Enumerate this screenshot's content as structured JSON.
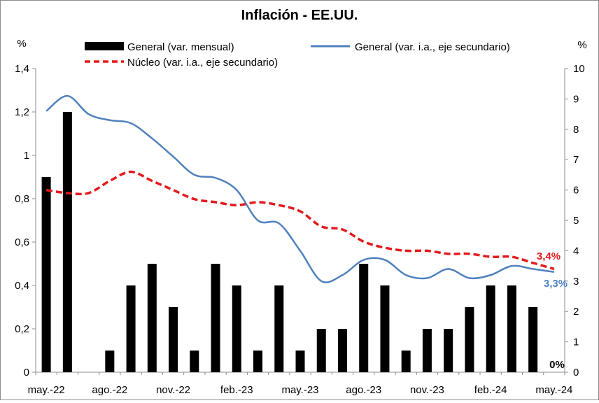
{
  "chart_data": {
    "type": "bar",
    "title": "Inflación - EE.UU.",
    "left_unit": "%",
    "right_unit": "%",
    "ylim_left": [
      0,
      1.4
    ],
    "ylim_right": [
      0,
      10
    ],
    "left_ticks": [
      "0",
      "0,2",
      "0,4",
      "0,6",
      "0,8",
      "1",
      "1,2",
      "1,4"
    ],
    "right_ticks": [
      "0",
      "1",
      "2",
      "3",
      "4",
      "5",
      "6",
      "7",
      "8",
      "9",
      "10"
    ],
    "x_tick_labels": [
      "may.-22",
      "ago.-22",
      "nov.-22",
      "feb.-23",
      "may.-23",
      "ago.-23",
      "nov.-23",
      "feb.-24",
      "may.-24"
    ],
    "months": [
      "may-22",
      "jun-22",
      "jul-22",
      "ago-22",
      "sep-22",
      "oct-22",
      "nov-22",
      "dic-22",
      "ene-23",
      "feb-23",
      "mar-23",
      "abr-23",
      "may-23",
      "jun-23",
      "jul-23",
      "ago-23",
      "sep-23",
      "oct-23",
      "nov-23",
      "dic-23",
      "ene-24",
      "feb-24",
      "mar-24",
      "abr-24",
      "may-24"
    ],
    "series": [
      {
        "name": "General (var. mensual)",
        "type": "bar",
        "axis": "left",
        "color": "#000000",
        "values": [
          0.9,
          1.2,
          0.0,
          0.1,
          0.4,
          0.5,
          0.3,
          0.1,
          0.5,
          0.4,
          0.1,
          0.4,
          0.1,
          0.2,
          0.2,
          0.5,
          0.4,
          0.1,
          0.2,
          0.2,
          0.3,
          0.4,
          0.4,
          0.3,
          0.0
        ]
      },
      {
        "name": "General (var. i.a., eje secundario)",
        "type": "line",
        "axis": "right",
        "color": "#4f81bd",
        "values": [
          8.6,
          9.1,
          8.5,
          8.3,
          8.2,
          7.7,
          7.1,
          6.5,
          6.4,
          6.0,
          5.0,
          4.9,
          4.0,
          3.0,
          3.2,
          3.7,
          3.7,
          3.2,
          3.1,
          3.4,
          3.1,
          3.2,
          3.5,
          3.4,
          3.3
        ]
      },
      {
        "name": "Núcleo (var. i.a., eje secundario)",
        "type": "line",
        "axis": "right",
        "color": "#e31a1c",
        "dashed": true,
        "values": [
          6.0,
          5.9,
          5.9,
          6.3,
          6.6,
          6.3,
          6.0,
          5.7,
          5.6,
          5.5,
          5.6,
          5.5,
          5.3,
          4.8,
          4.7,
          4.3,
          4.1,
          4.0,
          4.0,
          3.9,
          3.9,
          3.8,
          3.8,
          3.6,
          3.4
        ]
      }
    ],
    "annotations": [
      {
        "text": "3,4%",
        "color": "#e31a1c"
      },
      {
        "text": "3,3%",
        "color": "#4f81bd"
      },
      {
        "text": "0%",
        "color": "#000000"
      }
    ],
    "legend_position": "top",
    "grid": false
  }
}
